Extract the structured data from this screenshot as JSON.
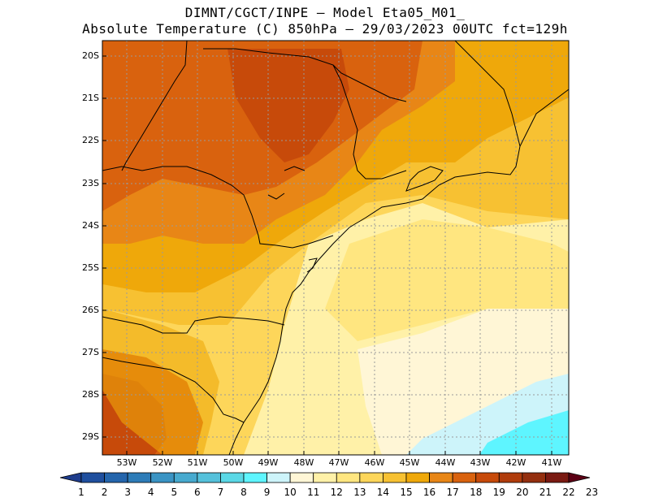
{
  "title_line1": "DIMNT/CGCT/INPE –  Model Eta05_M01_",
  "title_line2": "Absolute Temperature (C) 850hPa –  29/03/2023 00UTC fct=129h",
  "lat_labels": [
    "20S",
    "21S",
    "22S",
    "23S",
    "24S",
    "25S",
    "26S",
    "27S",
    "28S",
    "29S"
  ],
  "lon_labels": [
    "53W",
    "52W",
    "51W",
    "50W",
    "49W",
    "48W",
    "47W",
    "46W",
    "45W",
    "44W",
    "43W",
    "42W",
    "41W"
  ],
  "colorbar": {
    "labels": [
      "1",
      "2",
      "3",
      "4",
      "5",
      "6",
      "7",
      "8",
      "9",
      "10",
      "11",
      "12",
      "13",
      "14",
      "15",
      "16",
      "17",
      "18",
      "19",
      "20",
      "21",
      "22",
      "23"
    ],
    "colors": [
      "#1e3c8c",
      "#1f4f9e",
      "#2465ac",
      "#2d7cb8",
      "#3a94c4",
      "#47aacf",
      "#55c1db",
      "#5ad8e6",
      "#5ef5ff",
      "#cdf4fa",
      "#fff6d6",
      "#fff1a8",
      "#ffe680",
      "#fdd65a",
      "#f7c132",
      "#efa80a",
      "#e88616",
      "#d9620e",
      "#c74a0a",
      "#b03c0c",
      "#942f0f",
      "#7a1a12",
      "#5c0014"
    ]
  }
}
